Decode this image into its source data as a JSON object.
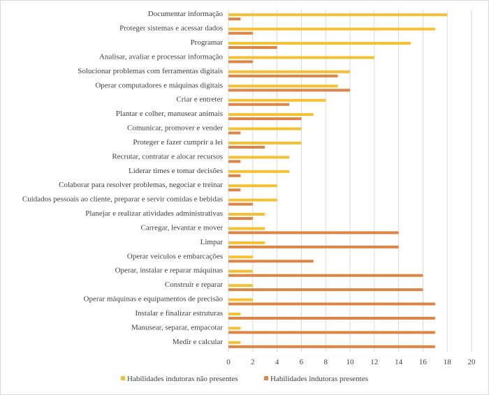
{
  "chart_data": {
    "type": "bar",
    "orientation": "horizontal",
    "categories": [
      "Documentar informação",
      "Proteger sistemas e acessar dados",
      "Programar",
      "Analisar, avaliar e processar informação",
      "Solucionar problemas com ferramentas digitais",
      "Operar computadores e máquinas digitais",
      "Criar e entreter",
      "Plantar e colher, manusear animais",
      "Comunicar, promover e vender",
      "Proteger e fazer cumprir a lei",
      "Recrutar, contratar e alocar recursos",
      "Liderar times e tomar decisões",
      "Colaborar para resolver problemas, negociar e treinar",
      "Cuidados pessoais ao cliente, preparar e servir comidas e bebidas",
      "Planejar e realizar atividades administrativas",
      "Carregar, levantar e mover",
      "Limpar",
      "Operar veículos e embarcações",
      "Operar, instalar e reparar máquinas",
      "Construir e reparar ",
      "Operar máquinas e equipamentos de precisão",
      "Instalar e finalizar estruturas",
      "Manusear, separar, empacotar",
      "Medir e calcular"
    ],
    "series": [
      {
        "name": "Habilidades indutoras não presentes",
        "color": "#F5C133",
        "values": [
          18,
          17,
          15,
          12,
          10,
          9,
          8,
          7,
          6,
          6,
          5,
          5,
          4,
          4,
          3,
          3,
          3,
          2,
          2,
          2,
          2,
          1,
          1,
          1
        ]
      },
      {
        "name": "Habilidades indutoras presentes",
        "color": "#DD8544",
        "values": [
          1,
          2,
          4,
          2,
          9,
          10,
          5,
          6,
          1,
          3,
          1,
          1,
          1,
          2,
          2,
          14,
          14,
          7,
          16,
          16,
          17,
          17,
          17,
          17
        ]
      }
    ],
    "xlim": [
      0,
      20
    ],
    "xticks": [
      0,
      2,
      4,
      6,
      8,
      10,
      12,
      14,
      16,
      18,
      20
    ],
    "grid": true,
    "legend_position": "bottom",
    "title": "",
    "xlabel": "",
    "ylabel": ""
  }
}
